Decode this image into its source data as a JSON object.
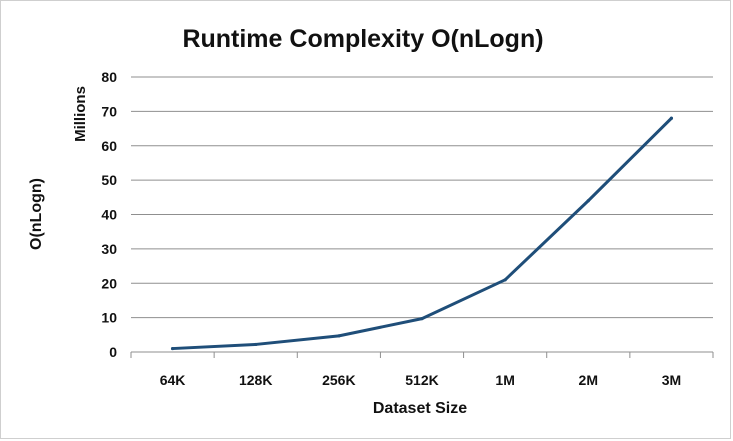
{
  "chart_data": {
    "type": "line",
    "title": "Runtime Complexity O(nLogn)",
    "xlabel": "Dataset Size",
    "ylabel": "O(nLogn)",
    "y_unit_label": "Millions",
    "categories": [
      "64K",
      "128K",
      "256K",
      "512K",
      "1M",
      "2M",
      "3M"
    ],
    "series": [
      {
        "values": [
          1.0,
          2.2,
          4.7,
          9.7,
          21.0,
          44.0,
          68.0
        ],
        "color": "#1f4e79"
      }
    ],
    "ylim": [
      0,
      80
    ],
    "yticks": [
      "0",
      "10",
      "20",
      "30",
      "40",
      "50",
      "60",
      "70",
      "80"
    ],
    "grid": true,
    "legend": "none"
  }
}
